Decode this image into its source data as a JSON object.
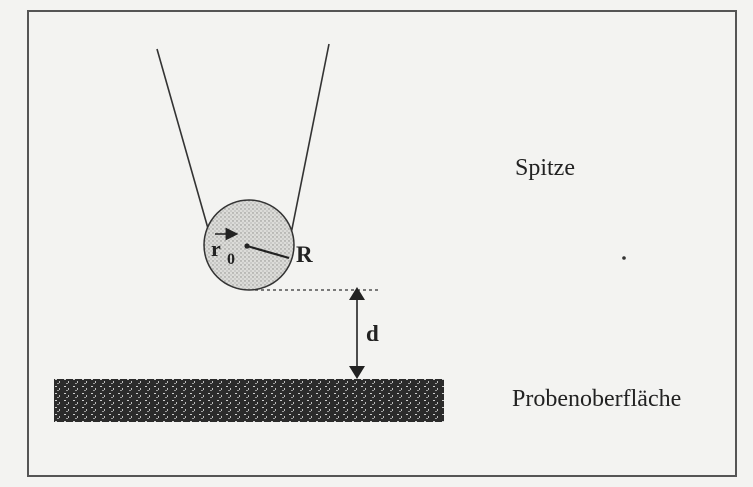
{
  "labels": {
    "tip": "Spitze",
    "surface": "Probenoberfläche",
    "radius": "R",
    "position_vector": "r",
    "position_subscript": "0",
    "distance": "d"
  },
  "colors": {
    "background": "#f3f3f1",
    "frame": "#555555",
    "ink": "#222222",
    "sphere_fill": "#d9d9d6",
    "sample_fill": "#2b2b2b"
  }
}
